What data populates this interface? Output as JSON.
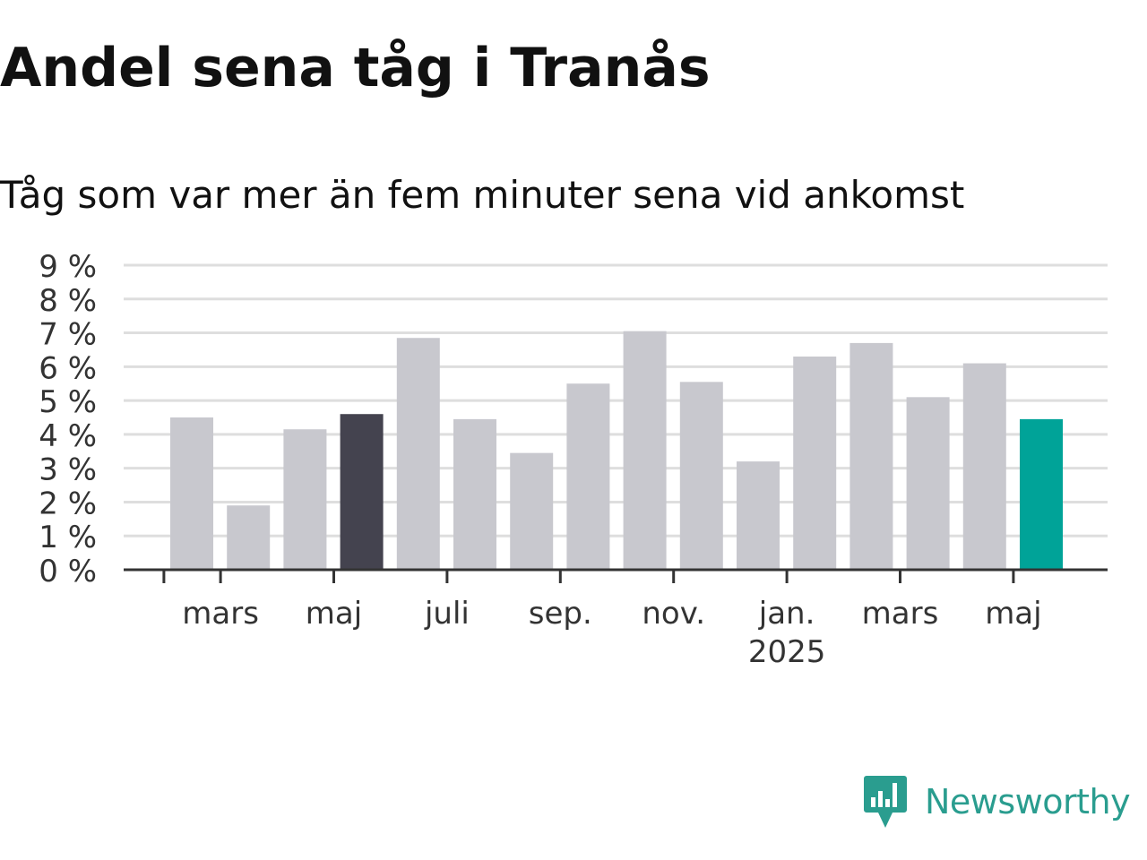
{
  "title": "Andel sena tåg i Tranås",
  "subtitle": "Tåg som var mer än fem minuter sena vid ankomst",
  "colors": {
    "default_bar": "#c8c8ce",
    "highlight_prev_bar": "#44434f",
    "highlight_latest_bar": "#00a398",
    "grid": "#dedede",
    "axis": "#333333",
    "brand": "#2a9d8f"
  },
  "chart_data": {
    "type": "bar",
    "ylim": [
      0,
      9
    ],
    "yticks": [
      "0 %",
      "1 %",
      "2 %",
      "3 %",
      "4 %",
      "5 %",
      "6 %",
      "7 %",
      "8 %",
      "9 %"
    ],
    "grid": true,
    "categories": [
      "2024-02",
      "2024-03",
      "2024-04",
      "2024-05",
      "2024-06",
      "2024-07",
      "2024-08",
      "2024-09",
      "2024-10",
      "2024-11",
      "2024-12",
      "2025-01",
      "2025-02",
      "2025-03",
      "2025-04",
      "2025-05"
    ],
    "values": [
      4.5,
      1.9,
      4.15,
      4.6,
      6.85,
      4.45,
      3.45,
      5.5,
      7.05,
      5.55,
      3.2,
      6.3,
      6.7,
      5.1,
      6.1,
      4.45
    ],
    "highlights": {
      "2024-05": "highlight_prev_bar",
      "2025-05": "highlight_latest_bar"
    },
    "xtick_labels": [
      {
        "category": "2024-02",
        "label": ""
      },
      {
        "category": "2024-03",
        "label": "mars"
      },
      {
        "category": "2024-05",
        "label": "maj"
      },
      {
        "category": "2024-07",
        "label": "juli"
      },
      {
        "category": "2024-09",
        "label": "sep."
      },
      {
        "category": "2024-11",
        "label": "nov."
      },
      {
        "category": "2025-01",
        "label": "jan.",
        "sublabel": "2025"
      },
      {
        "category": "2025-03",
        "label": "mars"
      },
      {
        "category": "2025-05",
        "label": "maj"
      }
    ]
  },
  "logo": {
    "text": "Newsworthy",
    "icon": "newsworthy-chart-bubble-icon"
  }
}
